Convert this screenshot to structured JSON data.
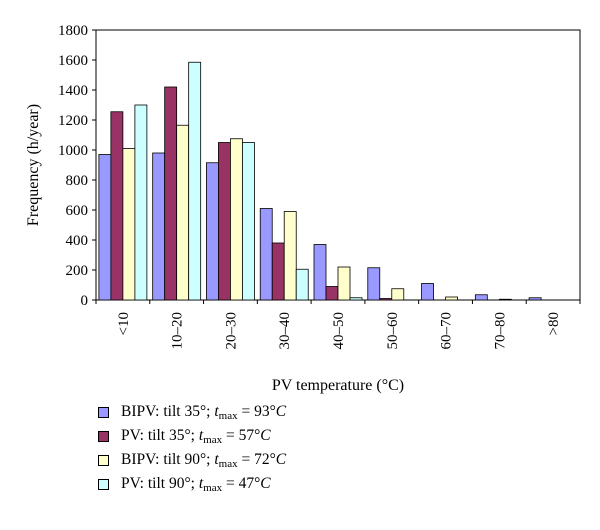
{
  "chart_data": {
    "type": "bar",
    "xlabel": "PV temperature (°C)",
    "ylabel": "Frequency (h/year)",
    "ylim": [
      0,
      1800
    ],
    "yticks": [
      0,
      200,
      400,
      600,
      800,
      1000,
      1200,
      1400,
      1600,
      1800
    ],
    "categories": [
      "<10",
      "10–20",
      "20–30",
      "30–40",
      "40–50",
      "50–60",
      "60–70",
      "70–80",
      ">80"
    ],
    "series": [
      {
        "name": "BIPV: tilt 35°; tmax = 93°C",
        "tilt": "BIPV: tilt 35°; ",
        "tmax_value": " = 93°",
        "color": "#9999ff",
        "values": [
          970,
          980,
          915,
          610,
          370,
          215,
          110,
          35,
          15
        ]
      },
      {
        "name": "PV: tilt 35°; tmax = 57°C",
        "tilt": "PV: tilt 35°; ",
        "tmax_value": " = 57°",
        "color": "#993366",
        "values": [
          1255,
          1420,
          1050,
          380,
          90,
          10,
          0,
          0,
          0
        ]
      },
      {
        "name": "BIPV: tilt 90°; tmax = 72°C",
        "tilt": "BIPV: tilt 90°; ",
        "tmax_value": " = 72°",
        "color": "#ffffcc",
        "values": [
          1010,
          1165,
          1075,
          590,
          220,
          75,
          20,
          5,
          0
        ]
      },
      {
        "name": "PV: tilt 90°; tmax = 47°C",
        "tilt": "PV: tilt 90°; ",
        "tmax_value": " = 47°",
        "color": "#ccffff",
        "values": [
          1300,
          1585,
          1050,
          205,
          15,
          0,
          0,
          0,
          0
        ]
      }
    ],
    "legend_tokens": {
      "t": "t",
      "max": "max",
      "C": "C"
    },
    "grid": false,
    "legend_position": "bottom-left"
  }
}
